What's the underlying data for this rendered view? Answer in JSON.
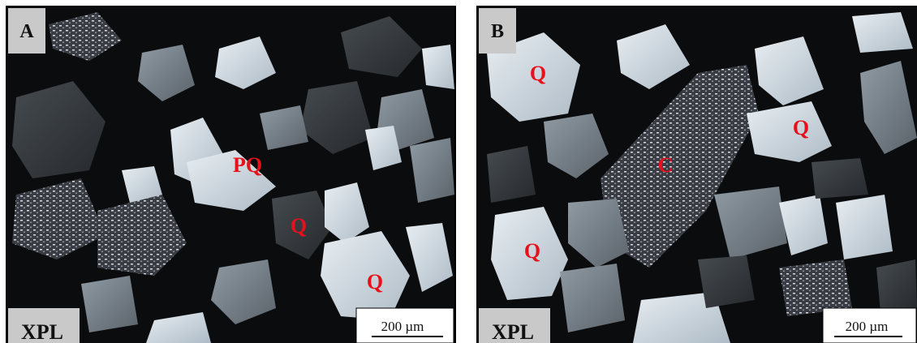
{
  "panels": [
    {
      "label": "A",
      "mode": "XPL",
      "scale_bar": "200 µm",
      "minerals": [
        "PQ",
        "Q",
        "Q"
      ]
    },
    {
      "label": "B",
      "mode": "XPL",
      "scale_bar": "200 µm",
      "minerals": [
        "Q",
        "C",
        "Q",
        "Q"
      ]
    }
  ]
}
